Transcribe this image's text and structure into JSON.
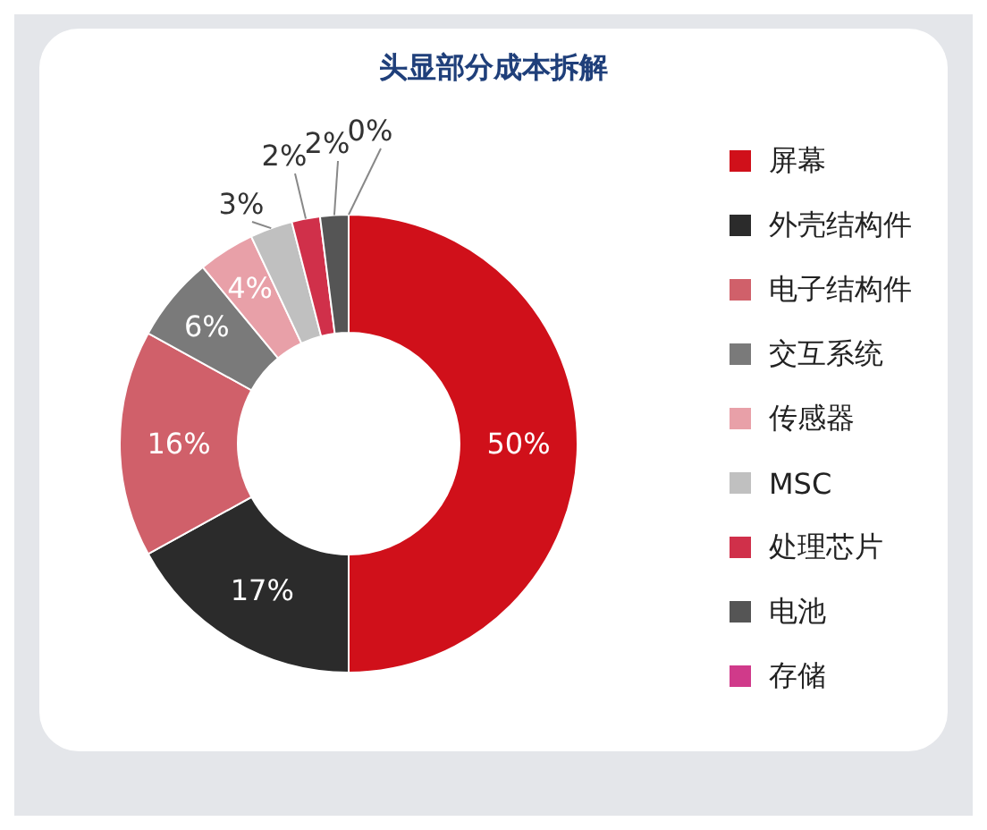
{
  "chart_data": {
    "type": "donut",
    "title": "头显部分成本拆解",
    "categories": [
      "屏幕",
      "外壳结构件",
      "电子结构件",
      "交互系统",
      "传感器",
      "MSC",
      "处理芯片",
      "电池",
      "存储"
    ],
    "values": [
      50,
      17,
      16,
      6,
      4,
      3,
      2,
      2,
      0
    ],
    "value_labels": [
      "50%",
      "17%",
      "16%",
      "6%",
      "4%",
      "3%",
      "2%",
      "2%",
      "0%"
    ],
    "colors": [
      "#d0101a",
      "#2b2b2b",
      "#d0606a",
      "#7a7a7a",
      "#e8a0a8",
      "#c0c0c0",
      "#d0304a",
      "#555555",
      "#d03a8a"
    ],
    "legend": "right"
  }
}
